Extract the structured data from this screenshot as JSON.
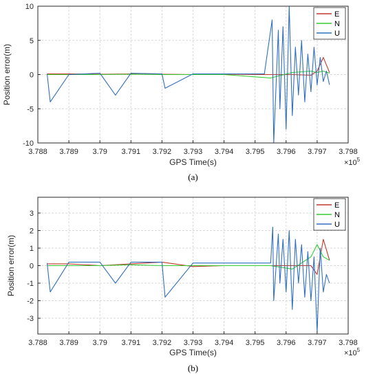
{
  "colors": {
    "E": "#c0392b",
    "N": "#33cc33",
    "U": "#2f6fc0",
    "grid": "#d9d9d9",
    "axis": "#262626"
  },
  "chart_data": [
    {
      "type": "line",
      "caption": "(a)",
      "xlabel": "GPS Time(s)",
      "ylabel": "Position error(m)",
      "x_exponent_label": "×10",
      "x_exponent_power": "5",
      "xlim": [
        3.788,
        3.798
      ],
      "ylim": [
        -10,
        10
      ],
      "x_ticks": [
        3.788,
        3.789,
        3.79,
        3.791,
        3.792,
        3.793,
        3.794,
        3.795,
        3.796,
        3.797,
        3.798
      ],
      "x_tick_labels": [
        "3.788",
        "3.789",
        "3.79",
        "3.791",
        "3.792",
        "3.793",
        "3.794",
        "3.795",
        "3.796",
        "3.797",
        "3.798"
      ],
      "y_ticks": [
        -10,
        -5,
        0,
        5,
        10
      ],
      "y_tick_labels": [
        "-10",
        "-5",
        "0",
        "5",
        "10"
      ],
      "grid": true,
      "legend_position": "top-right",
      "series": [
        {
          "name": "E",
          "x": [
            3.7883,
            3.789,
            3.79,
            3.791,
            3.792,
            3.793,
            3.794,
            3.7955,
            3.7962,
            3.7968,
            3.797,
            3.7972,
            3.7974
          ],
          "y": [
            0.1,
            0.1,
            0.05,
            0.1,
            0.05,
            0.0,
            0.05,
            0.0,
            0.0,
            -0.1,
            0.5,
            2.5,
            0.3
          ]
        },
        {
          "name": "N",
          "x": [
            3.7883,
            3.789,
            3.79,
            3.791,
            3.792,
            3.793,
            3.794,
            3.7955,
            3.7962,
            3.7968,
            3.797,
            3.7972,
            3.7974
          ],
          "y": [
            0.0,
            0.0,
            0.0,
            0.05,
            0.0,
            0.0,
            0.0,
            -0.5,
            0.3,
            0.5,
            0.3,
            0.5,
            0.2
          ]
        },
        {
          "name": "U",
          "x": [
            3.7883,
            3.7884,
            3.789,
            3.79,
            3.7905,
            3.791,
            3.792,
            3.7921,
            3.793,
            3.794,
            3.7953,
            3.79555,
            3.7956,
            3.79575,
            3.7958,
            3.7959,
            3.796,
            3.7961,
            3.7962,
            3.7963,
            3.7964,
            3.7965,
            3.7966,
            3.7967,
            3.7968,
            3.7969,
            3.797,
            3.7971,
            3.7972,
            3.7973,
            3.7974
          ],
          "y": [
            0.1,
            -4.0,
            0.0,
            0.2,
            -3.0,
            0.2,
            0.1,
            -2.0,
            0.1,
            0.1,
            0.1,
            8.0,
            -10.0,
            6.5,
            -5.0,
            7.0,
            -8.0,
            10.0,
            -6.0,
            4.0,
            -3.0,
            5.0,
            -4.0,
            3.0,
            -2.5,
            4.0,
            -1.5,
            2.5,
            -1.0,
            0.5,
            -1.5
          ]
        }
      ]
    },
    {
      "type": "line",
      "caption": "(b)",
      "xlabel": "GPS Time(s)",
      "ylabel": "Position error(m)",
      "x_exponent_label": "×10",
      "x_exponent_power": "5",
      "xlim": [
        3.788,
        3.798
      ],
      "ylim": [
        -3.9,
        3.9
      ],
      "x_ticks": [
        3.788,
        3.789,
        3.79,
        3.791,
        3.792,
        3.793,
        3.794,
        3.795,
        3.796,
        3.797,
        3.798
      ],
      "x_tick_labels": [
        "3.788",
        "3.789",
        "3.79",
        "3.791",
        "3.792",
        "3.793",
        "3.794",
        "3.795",
        "3.796",
        "3.797",
        "3.798"
      ],
      "y_ticks": [
        -3,
        -2,
        -1,
        0,
        1,
        2,
        3
      ],
      "y_tick_labels": [
        "-3",
        "-2",
        "-1",
        "0",
        "1",
        "2",
        "3"
      ],
      "grid": true,
      "legend_position": "top-right",
      "series": [
        {
          "name": "E",
          "x": [
            3.7883,
            3.789,
            3.79,
            3.791,
            3.792,
            3.793,
            3.794,
            3.7955,
            3.7962,
            3.7968,
            3.797,
            3.7972,
            3.7974
          ],
          "y": [
            0.1,
            0.1,
            0.0,
            0.1,
            0.2,
            -0.05,
            0.0,
            0.0,
            0.0,
            0.0,
            -0.5,
            1.5,
            0.3
          ]
        },
        {
          "name": "N",
          "x": [
            3.7883,
            3.789,
            3.79,
            3.791,
            3.792,
            3.793,
            3.794,
            3.7955,
            3.7962,
            3.7968,
            3.797,
            3.7972,
            3.7974
          ],
          "y": [
            0.0,
            0.0,
            0.0,
            0.05,
            0.0,
            0.0,
            0.0,
            0.0,
            -0.2,
            0.5,
            1.2,
            0.5,
            0.3
          ]
        },
        {
          "name": "U",
          "x": [
            3.7883,
            3.7884,
            3.789,
            3.79,
            3.7905,
            3.791,
            3.792,
            3.7921,
            3.793,
            3.794,
            3.7955,
            3.79557,
            3.7956,
            3.79575,
            3.7958,
            3.7959,
            3.796,
            3.7961,
            3.7962,
            3.7963,
            3.7964,
            3.7965,
            3.7966,
            3.7967,
            3.7968,
            3.7969,
            3.797,
            3.7971,
            3.7972,
            3.7973,
            3.7974
          ],
          "y": [
            0.15,
            -1.5,
            0.2,
            0.2,
            -1.0,
            0.2,
            0.2,
            -1.8,
            0.15,
            0.15,
            0.15,
            2.2,
            -2.0,
            1.8,
            -1.0,
            1.5,
            -1.5,
            2.0,
            -2.5,
            1.5,
            -1.0,
            1.2,
            -1.8,
            0.8,
            -2.0,
            0.5,
            -3.8,
            1.0,
            -1.5,
            -0.5,
            -1.0
          ]
        }
      ]
    }
  ]
}
